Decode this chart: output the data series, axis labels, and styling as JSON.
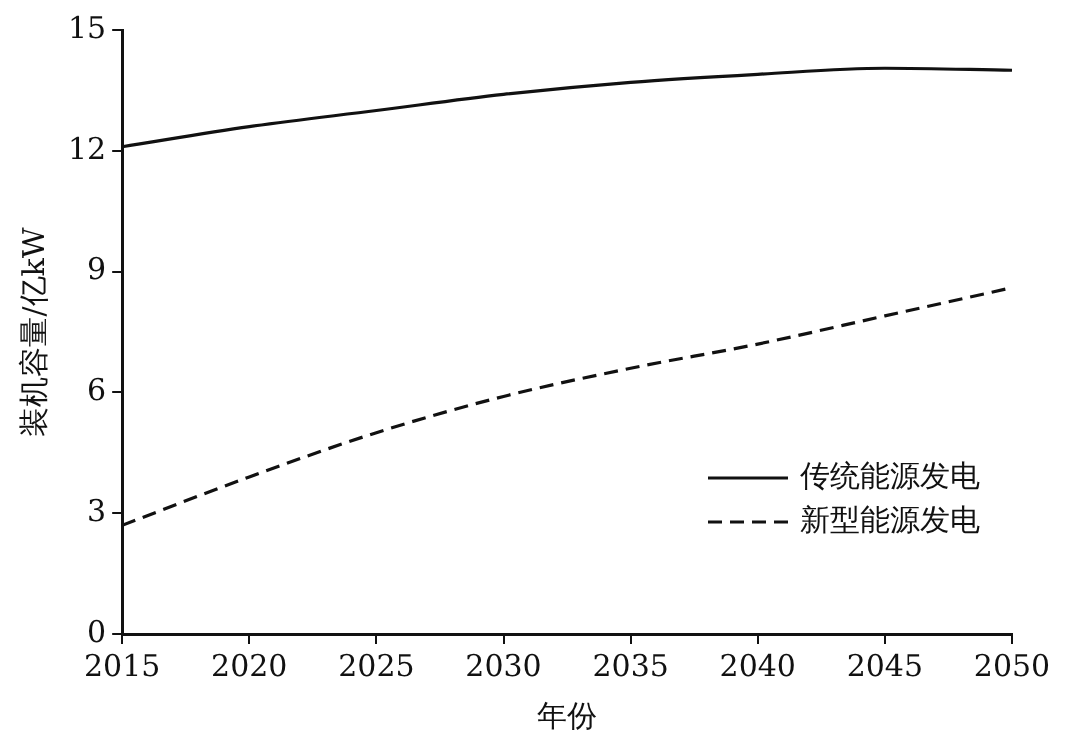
{
  "chart_data": {
    "type": "line",
    "xlabel": "年份",
    "ylabel": "装机容量/亿kW",
    "x": [
      2015,
      2020,
      2025,
      2030,
      2035,
      2040,
      2045,
      2050
    ],
    "xlim": [
      2015,
      2050
    ],
    "xticks": [
      2015,
      2020,
      2025,
      2030,
      2035,
      2040,
      2045,
      2050
    ],
    "ylim": [
      0,
      15
    ],
    "yticks": [
      0,
      3,
      6,
      9,
      12,
      15
    ],
    "grid": false,
    "legend": "bottom right",
    "marker": "none",
    "series": [
      {
        "name": "传统能源发电",
        "color": "#111111",
        "line_style": "solid",
        "values": [
          12.1,
          12.6,
          13.0,
          13.4,
          13.7,
          13.9,
          14.05,
          14.0
        ]
      },
      {
        "name": "新型能源发电",
        "color": "#111111",
        "line_style": "dashed",
        "values": [
          2.7,
          3.9,
          5.0,
          5.9,
          6.6,
          7.2,
          7.9,
          8.6
        ]
      }
    ]
  }
}
